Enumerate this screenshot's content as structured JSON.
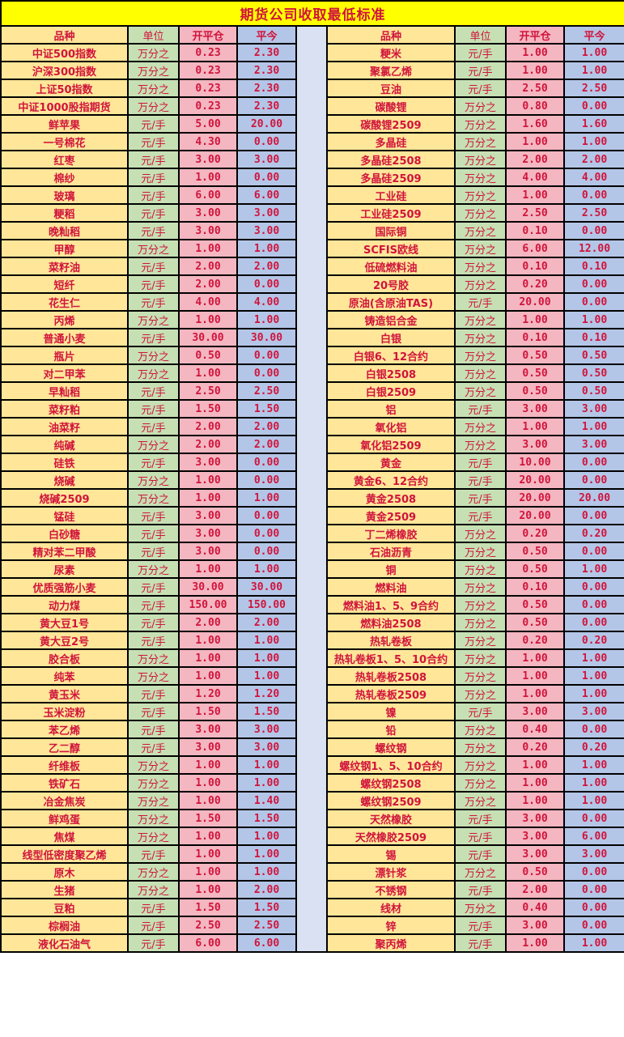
{
  "title": "期货公司收取最低标准",
  "headers": {
    "name": "品种",
    "unit": "单位",
    "open": "开平仓",
    "close": "平今"
  },
  "colors": {
    "title_bg": "#FFFF00",
    "name_bg": "#FFE699",
    "unit_bg": "#C6E0B4",
    "open_bg": "#F4B6C0",
    "close_bg": "#B4C6E7",
    "spacer_bg": "#D9E1F2",
    "text": "#D0143C"
  },
  "left_rows": [
    [
      "中证500指数",
      "万分之",
      "0.23",
      "2.30"
    ],
    [
      "沪深300指数",
      "万分之",
      "0.23",
      "2.30"
    ],
    [
      "上证50指数",
      "万分之",
      "0.23",
      "2.30"
    ],
    [
      "中证1000股指期货",
      "万分之",
      "0.23",
      "2.30"
    ],
    [
      "鲜苹果",
      "元/手",
      "5.00",
      "20.00"
    ],
    [
      "一号棉花",
      "元/手",
      "4.30",
      "0.00"
    ],
    [
      "红枣",
      "元/手",
      "3.00",
      "3.00"
    ],
    [
      "棉纱",
      "元/手",
      "1.00",
      "0.00"
    ],
    [
      "玻璃",
      "元/手",
      "6.00",
      "6.00"
    ],
    [
      "粳稻",
      "元/手",
      "3.00",
      "3.00"
    ],
    [
      "晚籼稻",
      "元/手",
      "3.00",
      "3.00"
    ],
    [
      "甲醇",
      "万分之",
      "1.00",
      "1.00"
    ],
    [
      "菜籽油",
      "元/手",
      "2.00",
      "2.00"
    ],
    [
      "短纤",
      "元/手",
      "2.00",
      "0.00"
    ],
    [
      "花生仁",
      "元/手",
      "4.00",
      "4.00"
    ],
    [
      "丙烯",
      "万分之",
      "1.00",
      "1.00"
    ],
    [
      "普通小麦",
      "元/手",
      "30.00",
      "30.00"
    ],
    [
      "瓶片",
      "万分之",
      "0.50",
      "0.00"
    ],
    [
      "对二甲苯",
      "万分之",
      "1.00",
      "0.00"
    ],
    [
      "早籼稻",
      "元/手",
      "2.50",
      "2.50"
    ],
    [
      "菜籽粕",
      "元/手",
      "1.50",
      "1.50"
    ],
    [
      "油菜籽",
      "元/手",
      "2.00",
      "2.00"
    ],
    [
      "纯碱",
      "万分之",
      "2.00",
      "2.00"
    ],
    [
      "硅铁",
      "元/手",
      "3.00",
      "0.00"
    ],
    [
      "烧碱",
      "万分之",
      "1.00",
      "0.00"
    ],
    [
      "烧碱2509",
      "万分之",
      "1.00",
      "1.00"
    ],
    [
      "锰硅",
      "元/手",
      "3.00",
      "0.00"
    ],
    [
      "白砂糖",
      "元/手",
      "3.00",
      "0.00"
    ],
    [
      "精对苯二甲酸",
      "元/手",
      "3.00",
      "0.00"
    ],
    [
      "尿素",
      "万分之",
      "1.00",
      "1.00"
    ],
    [
      "优质强筋小麦",
      "元/手",
      "30.00",
      "30.00"
    ],
    [
      "动力煤",
      "元/手",
      "150.00",
      "150.00"
    ],
    [
      "黄大豆1号",
      "元/手",
      "2.00",
      "2.00"
    ],
    [
      "黄大豆2号",
      "元/手",
      "1.00",
      "1.00"
    ],
    [
      "胶合板",
      "万分之",
      "1.00",
      "1.00"
    ],
    [
      "纯苯",
      "万分之",
      "1.00",
      "1.00"
    ],
    [
      "黄玉米",
      "元/手",
      "1.20",
      "1.20"
    ],
    [
      "玉米淀粉",
      "元/手",
      "1.50",
      "1.50"
    ],
    [
      "苯乙烯",
      "元/手",
      "3.00",
      "3.00"
    ],
    [
      "乙二醇",
      "元/手",
      "3.00",
      "3.00"
    ],
    [
      "纤维板",
      "万分之",
      "1.00",
      "1.00"
    ],
    [
      "铁矿石",
      "万分之",
      "1.00",
      "1.00"
    ],
    [
      "冶金焦炭",
      "万分之",
      "1.00",
      "1.40"
    ],
    [
      "鲜鸡蛋",
      "万分之",
      "1.50",
      "1.50"
    ],
    [
      "焦煤",
      "万分之",
      "1.00",
      "1.00"
    ],
    [
      "线型低密度聚乙烯",
      "元/手",
      "1.00",
      "1.00"
    ],
    [
      "原木",
      "万分之",
      "1.00",
      "1.00"
    ],
    [
      "生猪",
      "万分之",
      "1.00",
      "2.00"
    ],
    [
      "豆粕",
      "元/手",
      "1.50",
      "1.50"
    ],
    [
      "棕榈油",
      "元/手",
      "2.50",
      "2.50"
    ],
    [
      "液化石油气",
      "元/手",
      "6.00",
      "6.00"
    ]
  ],
  "right_rows": [
    [
      "粳米",
      "元/手",
      "1.00",
      "1.00"
    ],
    [
      "聚氯乙烯",
      "元/手",
      "1.00",
      "1.00"
    ],
    [
      "豆油",
      "元/手",
      "2.50",
      "2.50"
    ],
    [
      "碳酸锂",
      "万分之",
      "0.80",
      "0.00"
    ],
    [
      "碳酸锂2509",
      "万分之",
      "1.60",
      "1.60"
    ],
    [
      "多晶硅",
      "万分之",
      "1.00",
      "1.00"
    ],
    [
      "多晶硅2508",
      "万分之",
      "2.00",
      "2.00"
    ],
    [
      "多晶硅2509",
      "万分之",
      "4.00",
      "4.00"
    ],
    [
      "工业硅",
      "万分之",
      "1.00",
      "0.00"
    ],
    [
      "工业硅2509",
      "万分之",
      "2.50",
      "2.50"
    ],
    [
      "国际铜",
      "万分之",
      "0.10",
      "0.00"
    ],
    [
      "SCFIS欧线",
      "万分之",
      "6.00",
      "12.00"
    ],
    [
      "低硫燃料油",
      "万分之",
      "0.10",
      "0.10"
    ],
    [
      "20号胶",
      "万分之",
      "0.20",
      "0.00"
    ],
    [
      "原油(含原油TAS)",
      "元/手",
      "20.00",
      "0.00"
    ],
    [
      "铸造铝合金",
      "万分之",
      "1.00",
      "1.00"
    ],
    [
      "白银",
      "万分之",
      "0.10",
      "0.10"
    ],
    [
      "白银6、12合约",
      "万分之",
      "0.50",
      "0.50"
    ],
    [
      "白银2508",
      "万分之",
      "0.50",
      "0.50"
    ],
    [
      "白银2509",
      "万分之",
      "0.50",
      "0.50"
    ],
    [
      "铝",
      "元/手",
      "3.00",
      "3.00"
    ],
    [
      "氧化铝",
      "万分之",
      "1.00",
      "1.00"
    ],
    [
      "氧化铝2509",
      "万分之",
      "3.00",
      "3.00"
    ],
    [
      "黄金",
      "元/手",
      "10.00",
      "0.00"
    ],
    [
      "黄金6、12合约",
      "元/手",
      "20.00",
      "0.00"
    ],
    [
      "黄金2508",
      "元/手",
      "20.00",
      "20.00"
    ],
    [
      "黄金2509",
      "元/手",
      "20.00",
      "0.00"
    ],
    [
      "丁二烯橡胶",
      "万分之",
      "0.20",
      "0.20"
    ],
    [
      "石油沥青",
      "万分之",
      "0.50",
      "0.00"
    ],
    [
      "铜",
      "万分之",
      "0.50",
      "1.00"
    ],
    [
      "燃料油",
      "万分之",
      "0.10",
      "0.00"
    ],
    [
      "燃料油1、5、9合约",
      "万分之",
      "0.50",
      "0.00"
    ],
    [
      "燃料油2508",
      "万分之",
      "0.50",
      "0.00"
    ],
    [
      "热轧卷板",
      "万分之",
      "0.20",
      "0.20"
    ],
    [
      "热轧卷板1、5、10合约",
      "万分之",
      "1.00",
      "1.00"
    ],
    [
      "热轧卷板2508",
      "万分之",
      "1.00",
      "1.00"
    ],
    [
      "热轧卷板2509",
      "万分之",
      "1.00",
      "1.00"
    ],
    [
      "镍",
      "元/手",
      "3.00",
      "3.00"
    ],
    [
      "铅",
      "万分之",
      "0.40",
      "0.00"
    ],
    [
      "螺纹钢",
      "万分之",
      "0.20",
      "0.20"
    ],
    [
      "螺纹钢1、5、10合约",
      "万分之",
      "1.00",
      "1.00"
    ],
    [
      "螺纹钢2508",
      "万分之",
      "1.00",
      "1.00"
    ],
    [
      "螺纹钢2509",
      "万分之",
      "1.00",
      "1.00"
    ],
    [
      "天然橡胶",
      "元/手",
      "3.00",
      "0.00"
    ],
    [
      "天然橡胶2509",
      "元/手",
      "3.00",
      "6.00"
    ],
    [
      "锡",
      "元/手",
      "3.00",
      "3.00"
    ],
    [
      "漂针浆",
      "万分之",
      "0.50",
      "0.00"
    ],
    [
      "不锈钢",
      "元/手",
      "2.00",
      "0.00"
    ],
    [
      "线材",
      "万分之",
      "0.40",
      "0.00"
    ],
    [
      "锌",
      "元/手",
      "3.00",
      "0.00"
    ],
    [
      "聚丙烯",
      "元/手",
      "1.00",
      "1.00"
    ]
  ]
}
